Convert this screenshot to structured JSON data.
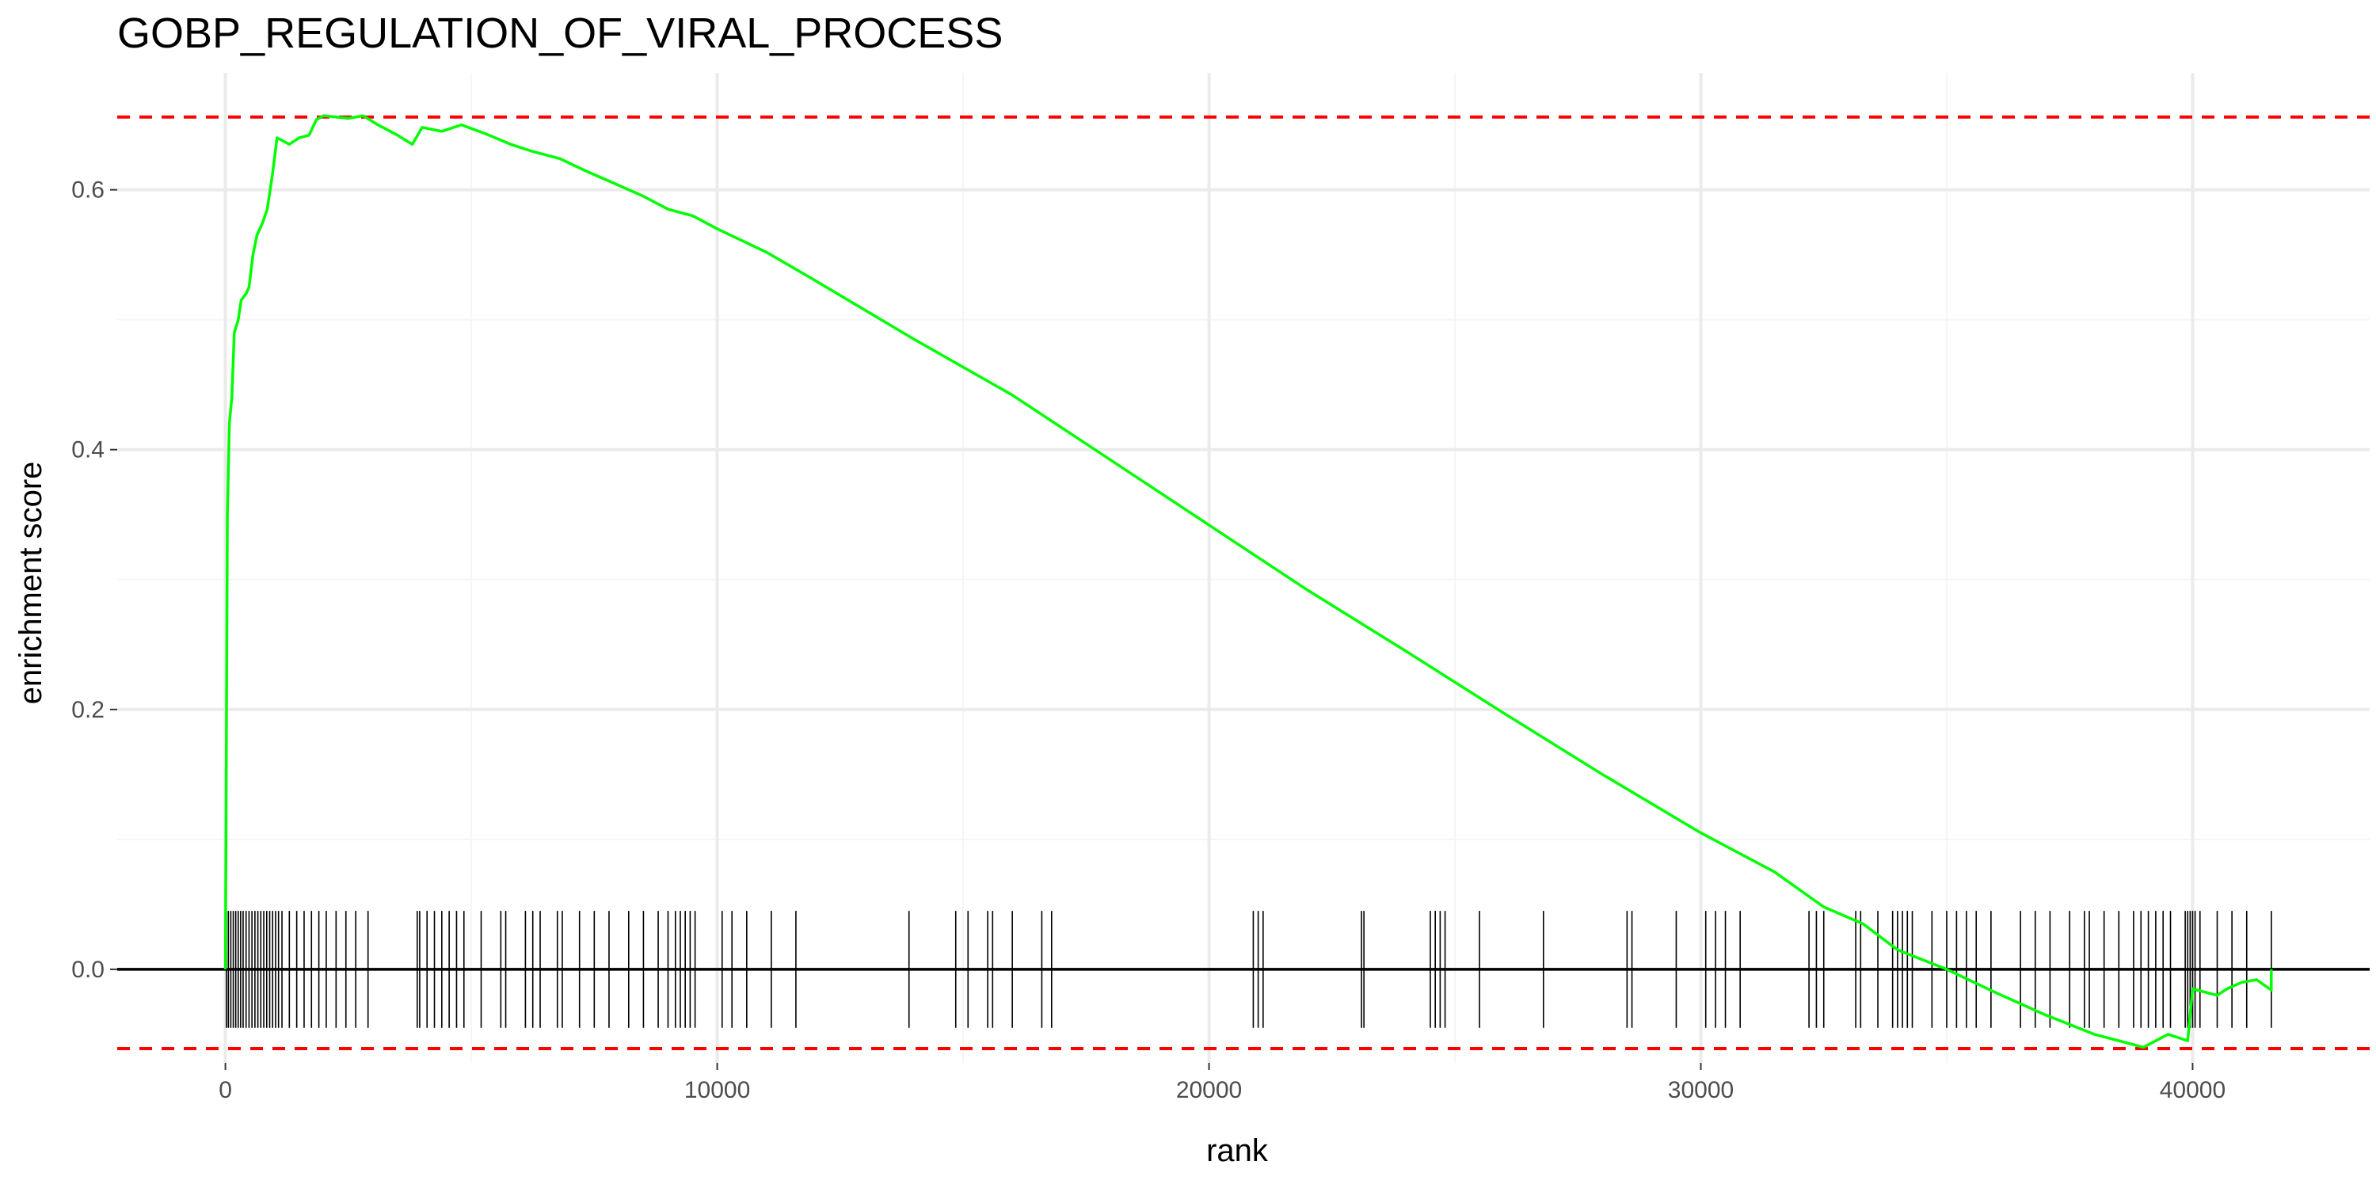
{
  "chart_data": {
    "type": "line",
    "title": "GOBP_REGULATION_OF_VIRAL_PROCESS",
    "xlabel": "rank",
    "ylabel": "enrichment score",
    "xlim": [
      -2200,
      43600
    ],
    "ylim": [
      -0.072,
      0.69
    ],
    "x_ticks": [
      0,
      10000,
      20000,
      30000,
      40000
    ],
    "x_tick_labels": [
      "0",
      "10000",
      "20000",
      "30000",
      "40000"
    ],
    "y_ticks": [
      0.0,
      0.2,
      0.4,
      0.6
    ],
    "y_tick_labels": [
      "0.0",
      "0.2",
      "0.4",
      "0.6"
    ],
    "grid": true,
    "colors": {
      "curve": "#00ff00",
      "threshold": "#ff0000",
      "zero_line": "#000000",
      "hits": "#000000",
      "grid_major": "#ebebeb",
      "grid_minor": "#f5f5f5"
    },
    "thresholds": {
      "max": 0.656,
      "min": -0.061
    },
    "hit_band": [
      -0.045,
      0.045
    ],
    "series": [
      {
        "values": [
          [
            0,
            0.0
          ],
          [
            40,
            0.35
          ],
          [
            80,
            0.42
          ],
          [
            130,
            0.44
          ],
          [
            180,
            0.49
          ],
          [
            260,
            0.5
          ],
          [
            320,
            0.515
          ],
          [
            420,
            0.52
          ],
          [
            480,
            0.525
          ],
          [
            560,
            0.55
          ],
          [
            640,
            0.565
          ],
          [
            760,
            0.575
          ],
          [
            850,
            0.585
          ],
          [
            950,
            0.61
          ],
          [
            1050,
            0.64
          ],
          [
            1300,
            0.635
          ],
          [
            1500,
            0.64
          ],
          [
            1700,
            0.642
          ],
          [
            1850,
            0.654
          ],
          [
            2000,
            0.657
          ],
          [
            2500,
            0.655
          ],
          [
            2800,
            0.657
          ],
          [
            3100,
            0.65
          ],
          [
            3500,
            0.642
          ],
          [
            3800,
            0.635
          ],
          [
            4000,
            0.648
          ],
          [
            4400,
            0.645
          ],
          [
            4800,
            0.65
          ],
          [
            5300,
            0.643
          ],
          [
            5800,
            0.635
          ],
          [
            6200,
            0.63
          ],
          [
            6800,
            0.624
          ],
          [
            7300,
            0.615
          ],
          [
            7900,
            0.605
          ],
          [
            8500,
            0.595
          ],
          [
            9000,
            0.585
          ],
          [
            9500,
            0.58
          ],
          [
            10000,
            0.57
          ],
          [
            11000,
            0.552
          ],
          [
            12000,
            0.53
          ],
          [
            14000,
            0.485
          ],
          [
            16000,
            0.442
          ],
          [
            18000,
            0.392
          ],
          [
            20000,
            0.342
          ],
          [
            22000,
            0.292
          ],
          [
            24000,
            0.245
          ],
          [
            26000,
            0.197
          ],
          [
            28000,
            0.15
          ],
          [
            30000,
            0.105
          ],
          [
            31500,
            0.075
          ],
          [
            32500,
            0.048
          ],
          [
            33300,
            0.035
          ],
          [
            34000,
            0.015
          ],
          [
            35000,
            0.0
          ],
          [
            36000,
            -0.018
          ],
          [
            37000,
            -0.035
          ],
          [
            38000,
            -0.05
          ],
          [
            38500,
            -0.055
          ],
          [
            39000,
            -0.06
          ],
          [
            39500,
            -0.05
          ],
          [
            39900,
            -0.055
          ],
          [
            40000,
            -0.015
          ],
          [
            40500,
            -0.02
          ],
          [
            40700,
            -0.015
          ],
          [
            41000,
            -0.01
          ],
          [
            41300,
            -0.008
          ],
          [
            41600,
            -0.016
          ],
          [
            41600,
            0.0
          ]
        ]
      }
    ],
    "hits": [
      20,
      60,
      110,
      160,
      210,
      260,
      310,
      360,
      420,
      480,
      540,
      600,
      660,
      720,
      780,
      840,
      900,
      960,
      1020,
      1080,
      1150,
      1300,
      1450,
      1600,
      1750,
      1900,
      2050,
      2250,
      2450,
      2650,
      2900,
      3900,
      3950,
      4100,
      4250,
      4400,
      4550,
      4700,
      4850,
      5200,
      5600,
      5700,
      6100,
      6250,
      6400,
      6750,
      6850,
      7200,
      7500,
      7800,
      8200,
      8500,
      8800,
      9000,
      9150,
      9250,
      9350,
      9450,
      9550,
      10100,
      10300,
      10600,
      11100,
      11600,
      13900,
      14850,
      15100,
      15500,
      15600,
      16000,
      16600,
      16800,
      20900,
      21000,
      21100,
      23100,
      23150,
      24500,
      24600,
      24700,
      24800,
      25500,
      26800,
      28500,
      28600,
      29500,
      30100,
      30300,
      30500,
      30800,
      32200,
      32350,
      32500,
      33150,
      33250,
      33600,
      33900,
      34000,
      34100,
      34200,
      34300,
      34700,
      35000,
      35200,
      35400,
      35600,
      35900,
      36500,
      36800,
      37100,
      37500,
      37800,
      37900,
      38200,
      38500,
      38800,
      38950,
      39100,
      39250,
      39400,
      39550,
      39850,
      39900,
      39950,
      40000,
      40050,
      40150,
      40500,
      40800,
      41100,
      41600
    ]
  }
}
